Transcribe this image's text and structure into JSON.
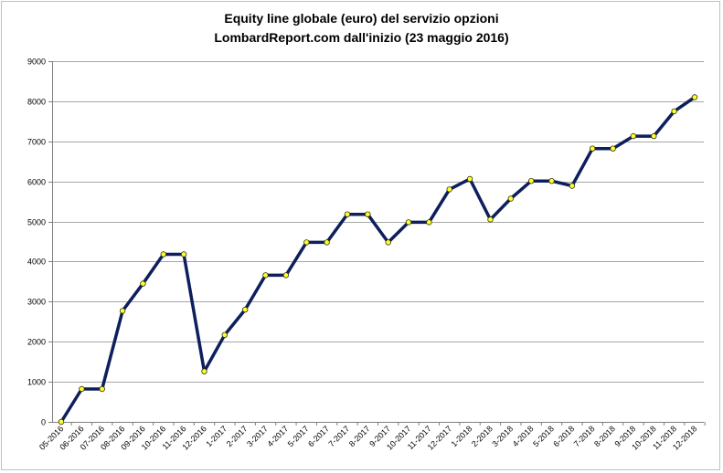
{
  "chart_data": {
    "type": "line",
    "title_line1": "Equity line globale (euro) del servizio opzioni",
    "title_line2": "LombardReport.com dall'inizio (23 maggio 2016)",
    "xlabel": "",
    "ylabel": "",
    "ylim": [
      0,
      9000
    ],
    "yticks": [
      0,
      1000,
      2000,
      3000,
      4000,
      5000,
      6000,
      7000,
      8000,
      9000
    ],
    "grid": true,
    "legend": "none",
    "colors": {
      "line": "#0d1f5c",
      "marker_fill": "#ffff33",
      "marker_stroke": "#333300",
      "grid": "#a6a6a6"
    },
    "categories": [
      "05-2016",
      "06-2016",
      "07-2016",
      "08-2016",
      "09-2016",
      "10-2016",
      "11-2016",
      "12-2016",
      "1-2017",
      "2-2017",
      "3-2017",
      "4-2017",
      "5-2017",
      "6-2017",
      "7-2017",
      "8-2017",
      "9-2017",
      "10-2017",
      "11-2017",
      "12-2017",
      "1-2018",
      "2-2018",
      "3-2018",
      "4-2018",
      "5-2018",
      "6-2018",
      "7-2018",
      "8-2018",
      "9-2018",
      "10-2018",
      "11-2018",
      "12-2018"
    ],
    "series": [
      {
        "values": [
          0,
          820,
          820,
          2770,
          3450,
          4180,
          4180,
          1260,
          2170,
          2800,
          3660,
          3660,
          4480,
          4480,
          5180,
          5180,
          4480,
          4980,
          4980,
          5800,
          6060,
          5050,
          5570,
          6010,
          6010,
          5890,
          6820,
          6820,
          7130,
          7130,
          7750,
          8100
        ]
      }
    ]
  }
}
